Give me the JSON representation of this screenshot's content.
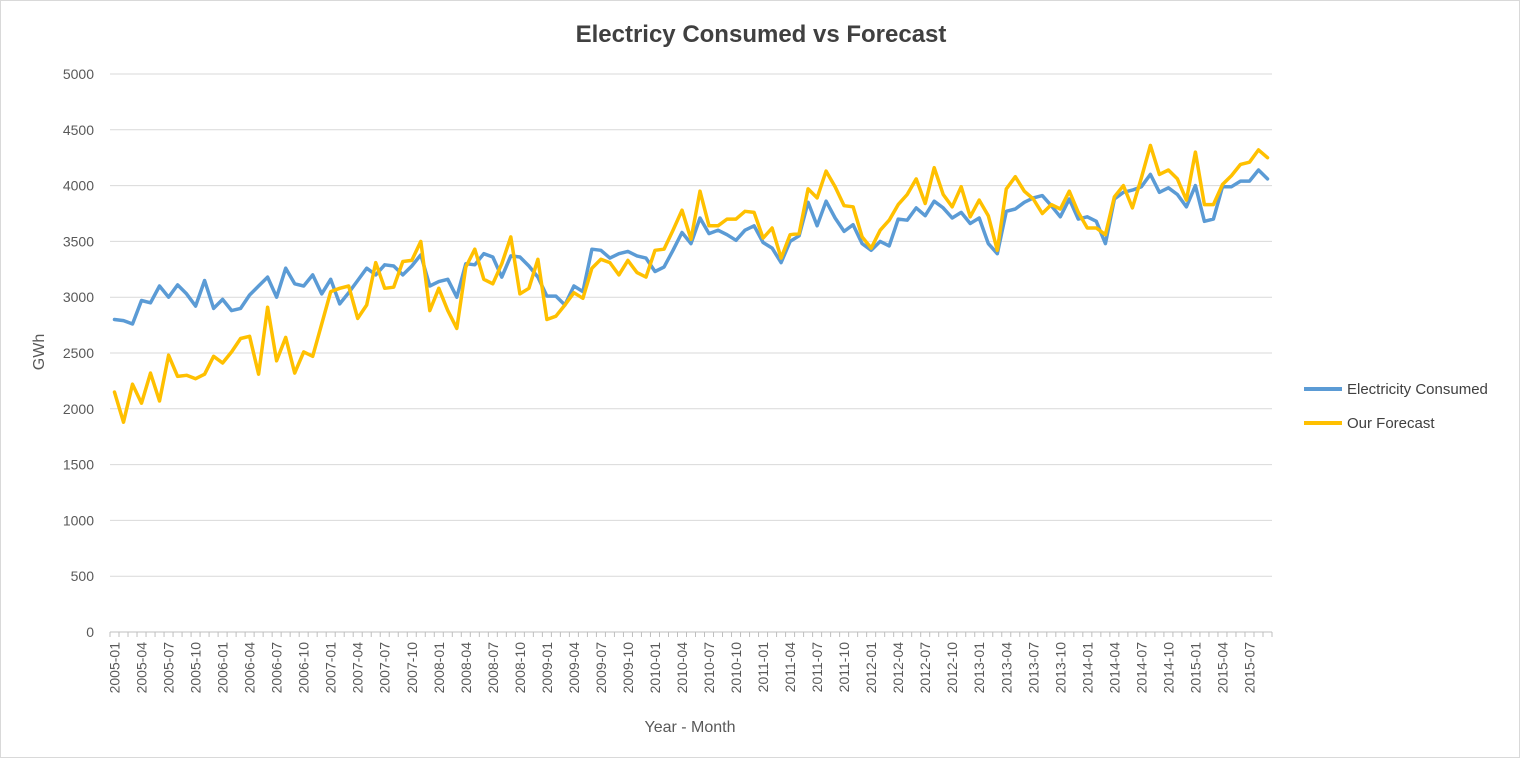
{
  "chart_data": {
    "type": "line",
    "title": "Electricy Consumed vs Forecast",
    "xlabel": "Year - Month",
    "ylabel": "GWh",
    "ylim": [
      0,
      5000
    ],
    "yticks": [
      0,
      500,
      1000,
      1500,
      2000,
      2500,
      3000,
      3500,
      4000,
      4500,
      5000
    ],
    "grid": true,
    "legend_position": "right",
    "x": [
      "2005-01",
      "2005-02",
      "2005-03",
      "2005-04",
      "2005-05",
      "2005-06",
      "2005-07",
      "2005-08",
      "2005-09",
      "2005-10",
      "2005-11",
      "2005-12",
      "2006-01",
      "2006-02",
      "2006-03",
      "2006-04",
      "2006-05",
      "2006-06",
      "2006-07",
      "2006-08",
      "2006-09",
      "2006-10",
      "2006-11",
      "2006-12",
      "2007-01",
      "2007-02",
      "2007-03",
      "2007-04",
      "2007-05",
      "2007-06",
      "2007-07",
      "2007-08",
      "2007-09",
      "2007-10",
      "2007-11",
      "2007-12",
      "2008-01",
      "2008-02",
      "2008-03",
      "2008-04",
      "2008-05",
      "2008-06",
      "2008-07",
      "2008-08",
      "2008-09",
      "2008-10",
      "2008-11",
      "2008-12",
      "2009-01",
      "2009-02",
      "2009-03",
      "2009-04",
      "2009-05",
      "2009-06",
      "2009-07",
      "2009-08",
      "2009-09",
      "2009-10",
      "2009-11",
      "2009-12",
      "2010-01",
      "2010-02",
      "2010-03",
      "2010-04",
      "2010-05",
      "2010-06",
      "2010-07",
      "2010-08",
      "2010-09",
      "2010-10",
      "2010-11",
      "2010-12",
      "2011-01",
      "2011-02",
      "2011-03",
      "2011-04",
      "2011-05",
      "2011-06",
      "2011-07",
      "2011-08",
      "2011-09",
      "2011-10",
      "2011-11",
      "2011-12",
      "2012-01",
      "2012-02",
      "2012-03",
      "2012-04",
      "2012-05",
      "2012-06",
      "2012-07",
      "2012-08",
      "2012-09",
      "2012-10",
      "2012-11",
      "2012-12",
      "2013-01",
      "2013-02",
      "2013-03",
      "2013-04",
      "2013-05",
      "2013-06",
      "2013-07",
      "2013-08",
      "2013-09",
      "2013-10",
      "2013-11",
      "2013-12",
      "2014-01",
      "2014-02",
      "2014-03",
      "2014-04",
      "2014-05",
      "2014-06",
      "2014-07",
      "2014-08",
      "2014-09",
      "2014-10",
      "2014-11",
      "2014-12",
      "2015-01",
      "2015-02",
      "2015-03",
      "2015-04",
      "2015-05",
      "2015-06",
      "2015-07",
      "2015-08",
      "2015-09"
    ],
    "x_tick_labels_shown": [
      "2005-01",
      "2005-04",
      "2005-07",
      "2005-10",
      "2006-01",
      "2006-04",
      "2006-07",
      "2006-10",
      "2007-01",
      "2007-04",
      "2007-07",
      "2007-10",
      "2008-01",
      "2008-04",
      "2008-07",
      "2008-10",
      "2009-01",
      "2009-04",
      "2009-07",
      "2009-10",
      "2010-01",
      "2010-04",
      "2010-07",
      "2010-10",
      "2011-01",
      "2011-04",
      "2011-07",
      "2011-10",
      "2012-01",
      "2012-04",
      "2012-07",
      "2012-10",
      "2013-01",
      "2013-04",
      "2013-07",
      "2013-10",
      "2014-01",
      "2014-04",
      "2014-07",
      "2014-10",
      "2015-01",
      "2015-04",
      "2015-07"
    ],
    "series": [
      {
        "name": "Electricity Consumed",
        "color": "#5b9bd5",
        "values": [
          2800,
          2790,
          2760,
          2970,
          2950,
          3100,
          3000,
          3110,
          3030,
          2920,
          3150,
          2900,
          2980,
          2880,
          2900,
          3020,
          3100,
          3180,
          3000,
          3260,
          3120,
          3100,
          3200,
          3030,
          3160,
          2940,
          3040,
          3150,
          3260,
          3200,
          3290,
          3280,
          3200,
          3280,
          3380,
          3100,
          3140,
          3160,
          3000,
          3300,
          3290,
          3390,
          3360,
          3180,
          3370,
          3360,
          3280,
          3180,
          3010,
          3010,
          2930,
          3100,
          3050,
          3430,
          3420,
          3350,
          3390,
          3410,
          3370,
          3350,
          3230,
          3270,
          3420,
          3580,
          3480,
          3710,
          3570,
          3600,
          3560,
          3510,
          3600,
          3640,
          3490,
          3440,
          3310,
          3500,
          3550,
          3850,
          3640,
          3860,
          3710,
          3590,
          3650,
          3480,
          3420,
          3500,
          3460,
          3700,
          3690,
          3800,
          3730,
          3860,
          3800,
          3710,
          3760,
          3660,
          3710,
          3480,
          3390,
          3770,
          3790,
          3850,
          3890,
          3910,
          3820,
          3720,
          3880,
          3700,
          3720,
          3680,
          3480,
          3880,
          3940,
          3960,
          3990,
          4100,
          3940,
          3980,
          3920,
          3810,
          4000,
          3680,
          3700,
          3990,
          3990,
          4040,
          4040,
          4140,
          4060
        ]
      },
      {
        "name": "Our Forecast",
        "color": "#ffc000",
        "values": [
          2150,
          1880,
          2220,
          2050,
          2320,
          2070,
          2480,
          2290,
          2300,
          2270,
          2310,
          2470,
          2410,
          2510,
          2630,
          2650,
          2310,
          2910,
          2430,
          2640,
          2320,
          2510,
          2470,
          2760,
          3050,
          3080,
          3100,
          2810,
          2930,
          3310,
          3080,
          3090,
          3320,
          3330,
          3500,
          2880,
          3080,
          2880,
          2720,
          3270,
          3430,
          3160,
          3120,
          3300,
          3540,
          3030,
          3080,
          3340,
          2800,
          2830,
          2930,
          3040,
          2990,
          3260,
          3340,
          3310,
          3200,
          3330,
          3220,
          3180,
          3420,
          3430,
          3600,
          3780,
          3520,
          3950,
          3640,
          3640,
          3700,
          3700,
          3770,
          3760,
          3530,
          3620,
          3350,
          3560,
          3570,
          3970,
          3890,
          4130,
          3990,
          3820,
          3810,
          3540,
          3440,
          3600,
          3690,
          3830,
          3920,
          4060,
          3840,
          4160,
          3920,
          3810,
          3990,
          3720,
          3870,
          3730,
          3420,
          3970,
          4080,
          3950,
          3880,
          3750,
          3830,
          3790,
          3950,
          3760,
          3620,
          3620,
          3560,
          3900,
          4000,
          3800,
          4070,
          4360,
          4100,
          4140,
          4060,
          3870,
          4300,
          3830,
          3830,
          4010,
          4090,
          4190,
          4210,
          4320,
          4250
        ]
      }
    ]
  }
}
